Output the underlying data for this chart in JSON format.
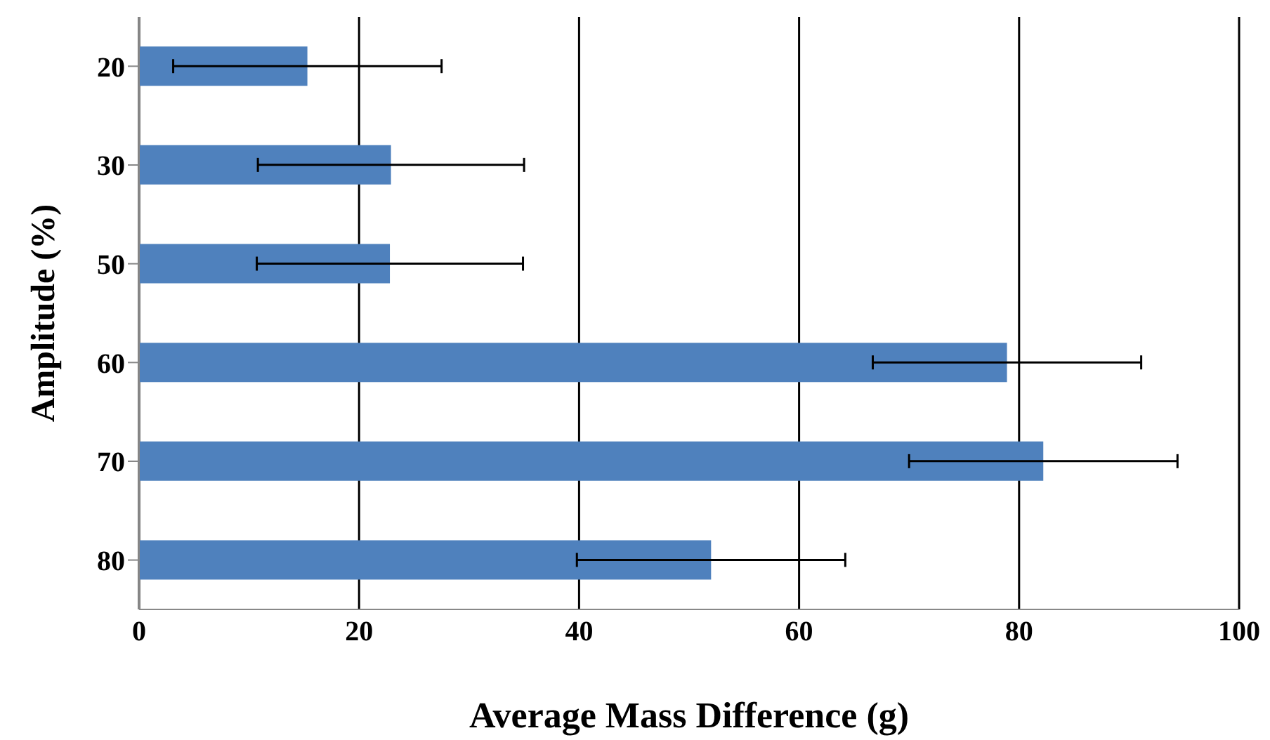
{
  "chart_data": {
    "type": "bar",
    "orientation": "horizontal",
    "xlabel": "Average Mass Difference (g)",
    "ylabel": "Amplitude (%)",
    "categories": [
      "20",
      "30",
      "50",
      "60",
      "70",
      "80"
    ],
    "values": [
      15.3,
      22.9,
      22.8,
      78.9,
      82.2,
      52.0
    ],
    "errors": [
      12.2,
      12.1,
      12.1,
      12.2,
      12.2,
      12.2
    ],
    "color": "#4f81bd",
    "xlim": [
      0,
      100
    ],
    "xticks": [
      0,
      20,
      40,
      60,
      80,
      100
    ],
    "grid": "x"
  }
}
